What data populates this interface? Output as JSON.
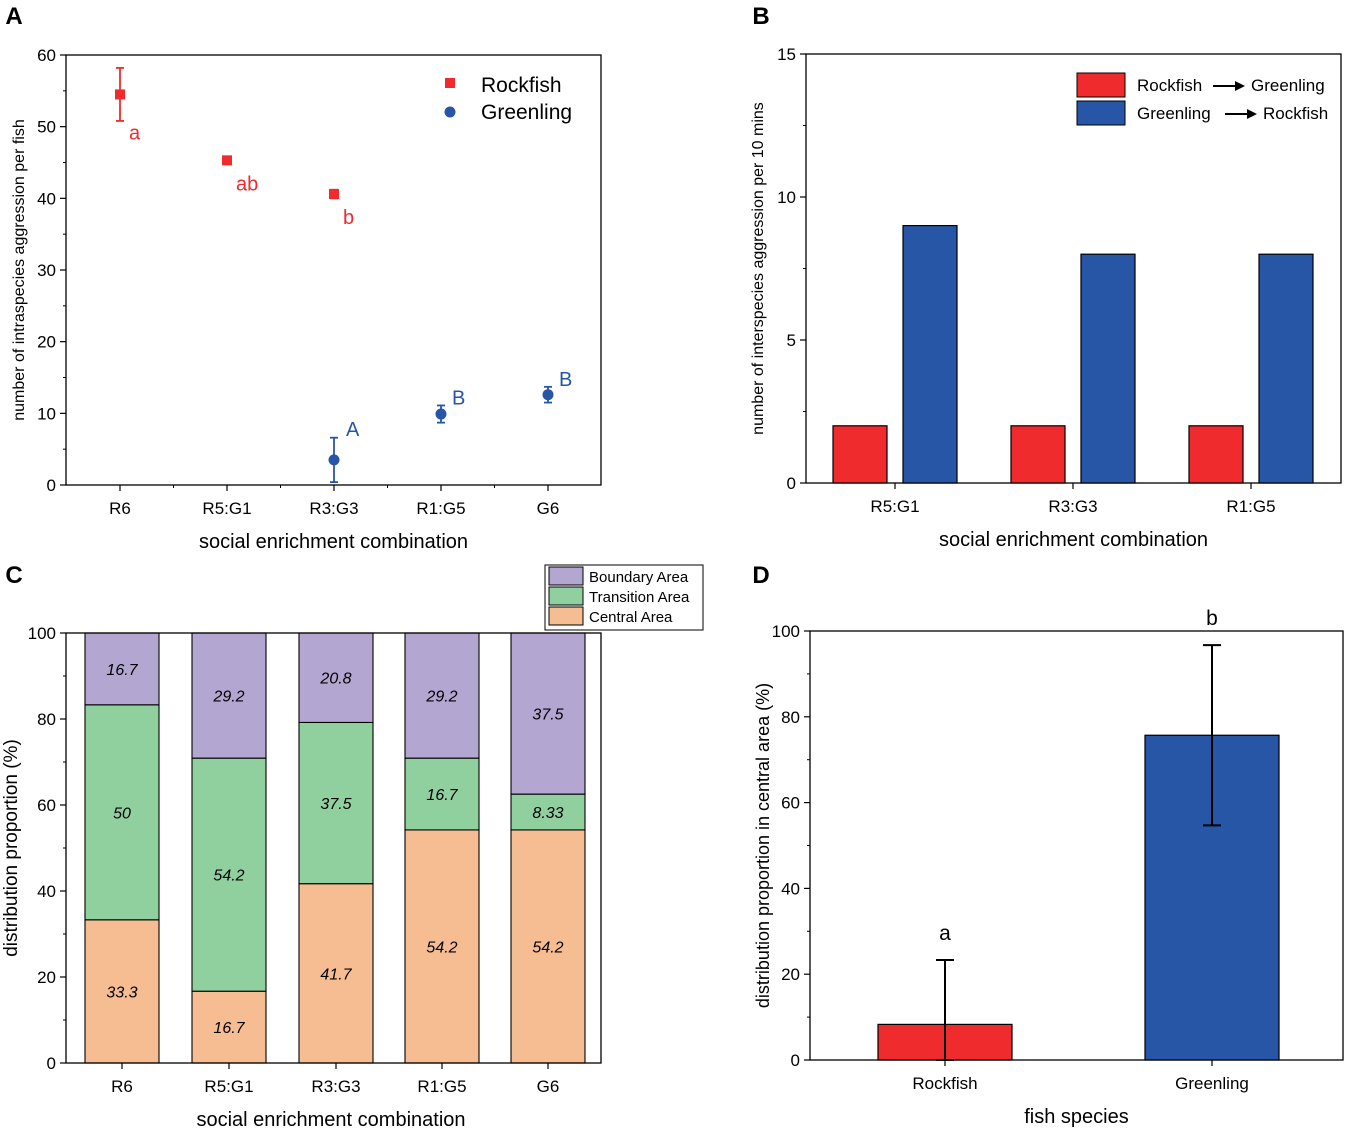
{
  "colors": {
    "rockfish": "#ef2b2d",
    "greenling": "#2856a6",
    "boundary": "#b3a6d1",
    "transition": "#90d09e",
    "central": "#f6bd93",
    "axis": "#000000"
  },
  "panel_labels": [
    "A",
    "B",
    "C",
    "D"
  ],
  "chart_data": [
    {
      "panel": "A",
      "type": "scatter",
      "xlabel": "social enrichment combination",
      "ylabel": "number of intraspecies aggression per fish",
      "categories": [
        "R6",
        "R5:G1",
        "R3:G3",
        "R1:G5",
        "G6"
      ],
      "ylim": [
        0,
        60
      ],
      "yticks": [
        0,
        10,
        20,
        30,
        40,
        50,
        60
      ],
      "legend": [
        "Rockfish",
        "Greenling"
      ],
      "legend_position": "top-right",
      "series": [
        {
          "name": "Rockfish",
          "marker": "square",
          "points": [
            {
              "category": "R6",
              "value": 54.5,
              "err": 3.7,
              "letter": "a"
            },
            {
              "category": "R5:G1",
              "value": 45.3,
              "err": 0.3,
              "letter": "ab"
            },
            {
              "category": "R3:G3",
              "value": 40.6,
              "err": 0.6,
              "letter": "b"
            }
          ]
        },
        {
          "name": "Greenling",
          "marker": "circle",
          "points": [
            {
              "category": "R3:G3",
              "value": 3.5,
              "err": 3.1,
              "letter": "A"
            },
            {
              "category": "R1:G5",
              "value": 9.9,
              "err": 1.2,
              "letter": "B"
            },
            {
              "category": "G6",
              "value": 12.6,
              "err": 1.1,
              "letter": "B"
            }
          ]
        }
      ]
    },
    {
      "panel": "B",
      "type": "bar",
      "xlabel": "social enrichment combination",
      "ylabel": "number of interspecies aggression per 10 mins",
      "categories": [
        "R5:G1",
        "R3:G3",
        "R1:G5"
      ],
      "ylim": [
        0,
        15
      ],
      "yticks": [
        0,
        5,
        10,
        15
      ],
      "legend_position": "top-right",
      "series": [
        {
          "name": "Rockfish",
          "arrow_target": "Greenling",
          "values": [
            2,
            2,
            2
          ]
        },
        {
          "name": "Greenling",
          "arrow_target": "Rockfish",
          "values": [
            9,
            8,
            8
          ]
        }
      ]
    },
    {
      "panel": "C",
      "type": "stacked-bar",
      "xlabel": "social enrichment combination",
      "ylabel": "distribution proportion (%)",
      "categories": [
        "R6",
        "R5:G1",
        "R3:G3",
        "R1:G5",
        "G6"
      ],
      "ylim": [
        0,
        100
      ],
      "yticks": [
        0,
        20,
        40,
        60,
        80,
        100
      ],
      "legend": [
        "Boundary Area",
        "Transition Area",
        "Central Area"
      ],
      "legend_position": "above-top-right",
      "series": [
        {
          "name": "Central Area",
          "values": [
            33.3,
            16.7,
            41.7,
            54.2,
            54.2
          ],
          "labels": [
            "33.3",
            "16.7",
            "41.7",
            "54.2",
            "54.2"
          ]
        },
        {
          "name": "Transition Area",
          "values": [
            50,
            54.2,
            37.5,
            16.7,
            8.33
          ],
          "labels": [
            "50",
            "54.2",
            "37.5",
            "16.7",
            "8.33"
          ]
        },
        {
          "name": "Boundary Area",
          "values": [
            16.7,
            29.2,
            20.8,
            29.2,
            37.5
          ],
          "labels": [
            "16.7",
            "29.2",
            "20.8",
            "29.2",
            "37.5"
          ]
        }
      ]
    },
    {
      "panel": "D",
      "type": "bar",
      "xlabel": "fish species",
      "ylabel": "distribution proportion in central area (%)",
      "categories": [
        "Rockfish",
        "Greenling"
      ],
      "ylim": [
        0,
        100
      ],
      "yticks": [
        0,
        20,
        40,
        60,
        80,
        100
      ],
      "values": [
        8.3,
        75.7
      ],
      "errors": [
        15,
        21
      ],
      "letters": [
        "a",
        "b"
      ]
    }
  ]
}
